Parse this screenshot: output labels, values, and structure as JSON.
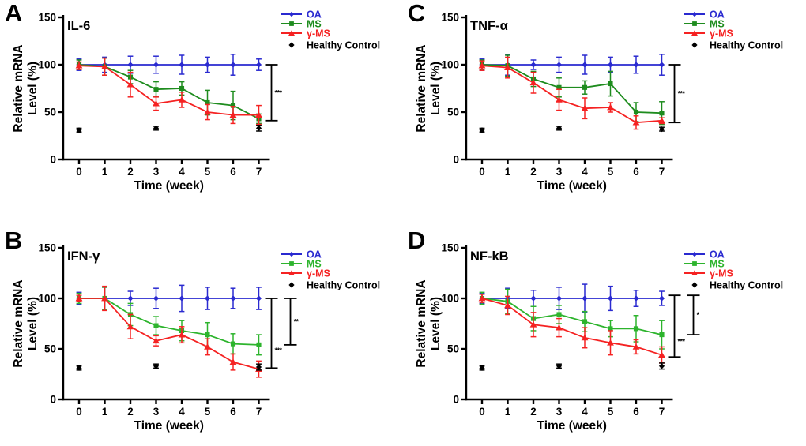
{
  "figure": {
    "background": "#ffffff",
    "y_axis_label_line1": "Relative mRNA",
    "y_axis_label_line2": "Level (%)",
    "x_axis_label": "Time (week)",
    "legend_labels": [
      "OA",
      "MS",
      "γ-MS",
      "Healthy Control"
    ]
  },
  "chart_data": [
    {
      "type": "line",
      "panel": "A",
      "title": "IL-6",
      "x": [
        0,
        1,
        2,
        3,
        4,
        5,
        6,
        7
      ],
      "xlabel": "Time (week)",
      "ylabel": "Relative mRNA Level (%)",
      "ylim": [
        0,
        150
      ],
      "yticks": [
        0,
        50,
        100,
        150
      ],
      "grid": false,
      "legend_position": "top-right",
      "series": [
        {
          "name": "OA",
          "color": "#2a2ad0",
          "marker": "diamond",
          "values": [
            100,
            100,
            100,
            100,
            100,
            100,
            100,
            100
          ],
          "err": [
            6,
            8,
            9,
            9,
            10,
            8,
            11,
            6
          ]
        },
        {
          "name": "MS",
          "color": "#1e8c1e",
          "marker": "square",
          "values": [
            100,
            98,
            87,
            74,
            75,
            60,
            57,
            43
          ],
          "err": [
            5,
            9,
            7,
            8,
            7,
            13,
            15,
            5
          ]
        },
        {
          "name": "γ-MS",
          "color": "#f52222",
          "marker": "triangle",
          "values": [
            99,
            98,
            79,
            59,
            63,
            50,
            47,
            47
          ],
          "err": [
            4,
            9,
            13,
            7,
            8,
            8,
            9,
            10
          ]
        },
        {
          "name": "Healthy Control",
          "color": "#000000",
          "marker": "diamond",
          "scatter_only": true,
          "x": [
            0,
            3,
            7
          ],
          "values": [
            31,
            33,
            33
          ],
          "err": [
            2,
            2,
            3
          ]
        }
      ],
      "significance": [
        {
          "label": "***",
          "top": 100,
          "bottom": 41
        }
      ]
    },
    {
      "type": "line",
      "panel": "B",
      "title": "IFN-γ",
      "x": [
        0,
        1,
        2,
        3,
        4,
        5,
        6,
        7
      ],
      "xlabel": "Time (week)",
      "ylabel": "Relative mRNA Level (%)",
      "ylim": [
        0,
        150
      ],
      "yticks": [
        0,
        50,
        100,
        150
      ],
      "grid": false,
      "legend_position": "top-right",
      "series": [
        {
          "name": "OA",
          "color": "#2a2ad0",
          "marker": "diamond",
          "values": [
            100,
            100,
            100,
            100,
            100,
            100,
            100,
            100
          ],
          "err": [
            6,
            11,
            7,
            10,
            13,
            11,
            10,
            11
          ]
        },
        {
          "name": "MS",
          "color": "#2db42d",
          "marker": "square",
          "values": [
            100,
            100,
            84,
            73,
            68,
            64,
            55,
            54
          ],
          "err": [
            5,
            11,
            11,
            9,
            10,
            12,
            10,
            10
          ]
        },
        {
          "name": "γ-MS",
          "color": "#f52222",
          "marker": "triangle",
          "values": [
            100,
            100,
            72,
            58,
            64,
            52,
            37,
            30
          ],
          "err": [
            3,
            12,
            12,
            5,
            8,
            8,
            8,
            8
          ]
        },
        {
          "name": "Healthy Control",
          "color": "#000000",
          "marker": "diamond",
          "scatter_only": true,
          "x": [
            0,
            3,
            7
          ],
          "values": [
            31,
            33,
            32
          ],
          "err": [
            2,
            2,
            3
          ]
        }
      ],
      "significance": [
        {
          "label": "***",
          "top": 100,
          "bottom": 31
        },
        {
          "label": "**",
          "top": 100,
          "bottom": 54
        }
      ]
    },
    {
      "type": "line",
      "panel": "C",
      "title": "TNF-α",
      "x": [
        0,
        1,
        2,
        3,
        4,
        5,
        6,
        7
      ],
      "xlabel": "Time (week)",
      "ylabel": "Relative mRNA Level (%)",
      "ylim": [
        0,
        150
      ],
      "yticks": [
        0,
        50,
        100,
        150
      ],
      "grid": false,
      "legend_position": "top-right",
      "series": [
        {
          "name": "OA",
          "color": "#2a2ad0",
          "marker": "diamond",
          "values": [
            100,
            100,
            100,
            100,
            100,
            100,
            100,
            100
          ],
          "err": [
            6,
            11,
            5,
            8,
            10,
            8,
            9,
            11
          ]
        },
        {
          "name": "MS",
          "color": "#1e8c1e",
          "marker": "square",
          "values": [
            100,
            99,
            85,
            76,
            76,
            80,
            50,
            49
          ],
          "err": [
            5,
            11,
            8,
            10,
            7,
            13,
            10,
            12
          ]
        },
        {
          "name": "γ-MS",
          "color": "#f52222",
          "marker": "triangle",
          "values": [
            99,
            97,
            81,
            63,
            54,
            55,
            39,
            41
          ],
          "err": [
            5,
            11,
            11,
            11,
            11,
            5,
            7,
            3
          ]
        },
        {
          "name": "Healthy Control",
          "color": "#000000",
          "marker": "diamond",
          "scatter_only": true,
          "x": [
            0,
            3,
            7
          ],
          "values": [
            31,
            33,
            32
          ],
          "err": [
            2,
            2,
            2
          ]
        }
      ],
      "significance": [
        {
          "label": "***",
          "top": 100,
          "bottom": 39
        }
      ]
    },
    {
      "type": "line",
      "panel": "D",
      "title": "NF-kB",
      "x": [
        0,
        1,
        2,
        3,
        4,
        5,
        6,
        7
      ],
      "xlabel": "Time (week)",
      "ylabel": "Relative mRNA Level (%)",
      "ylim": [
        0,
        150
      ],
      "yticks": [
        0,
        50,
        100,
        150
      ],
      "grid": false,
      "legend_position": "top-right",
      "series": [
        {
          "name": "OA",
          "color": "#2a2ad0",
          "marker": "diamond",
          "values": [
            100,
            100,
            100,
            100,
            100,
            100,
            100,
            100
          ],
          "err": [
            5,
            10,
            8,
            11,
            14,
            12,
            8,
            7
          ]
        },
        {
          "name": "MS",
          "color": "#2db42d",
          "marker": "square",
          "values": [
            100,
            97,
            80,
            84,
            77,
            70,
            70,
            64
          ],
          "err": [
            6,
            12,
            12,
            9,
            10,
            8,
            13,
            14
          ]
        },
        {
          "name": "γ-MS",
          "color": "#f52222",
          "marker": "triangle",
          "values": [
            100,
            93,
            74,
            71,
            61,
            56,
            52,
            44
          ],
          "err": [
            4,
            9,
            12,
            9,
            10,
            12,
            7,
            8
          ]
        },
        {
          "name": "Healthy Control",
          "color": "#000000",
          "marker": "diamond",
          "scatter_only": true,
          "x": [
            0,
            3,
            7
          ],
          "values": [
            31,
            33,
            33
          ],
          "err": [
            2,
            2,
            3
          ]
        }
      ],
      "significance": [
        {
          "label": "***",
          "top": 103,
          "bottom": 42
        },
        {
          "label": "*",
          "top": 103,
          "bottom": 64
        }
      ]
    }
  ]
}
